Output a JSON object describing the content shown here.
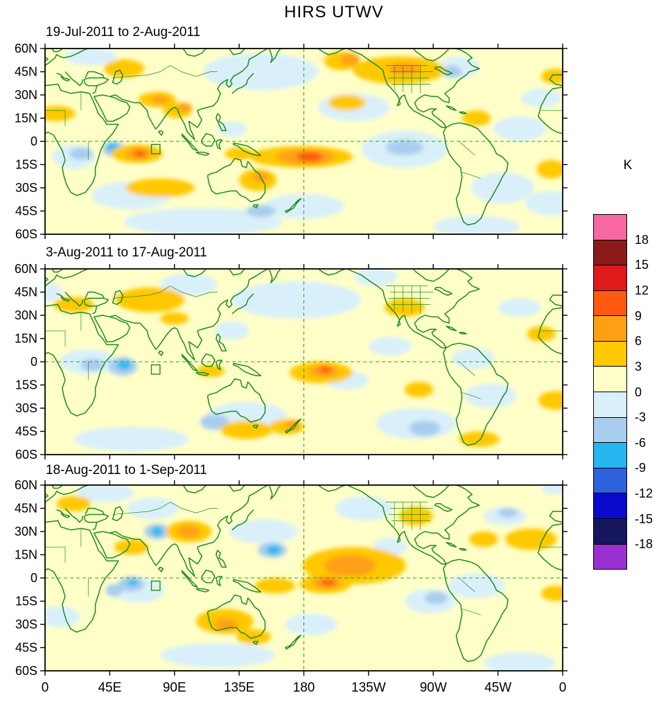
{
  "title": "HIRS UTWV",
  "chart_data": {
    "type": "heatmap",
    "title": "HIRS UTWV",
    "unit": "K",
    "projection": "equirectangular, 0-360E longitude, 60S-60N latitude",
    "lon_range": [
      0,
      360
    ],
    "lat_range": [
      -60,
      60
    ],
    "lon_ticks": [
      "0",
      "45E",
      "90E",
      "135E",
      "180",
      "135W",
      "90W",
      "45W",
      "0"
    ],
    "lat_ticks": [
      "60N",
      "45N",
      "30N",
      "15N",
      "0",
      "15S",
      "30S",
      "45S",
      "60S"
    ],
    "contour_interval": 3,
    "colorbar_levels": [
      18,
      15,
      12,
      9,
      6,
      3,
      0,
      -3,
      -6,
      -9,
      -12,
      -15,
      -18
    ],
    "colorbar_colors": [
      "#F768A1",
      "#8B1A1A",
      "#E01A1A",
      "#FF5A0F",
      "#FFA014",
      "#FFC805",
      "#FFFFC8",
      "#D9F0FA",
      "#A9CDEE",
      "#27B7F0",
      "#2D62DC",
      "#0A0ACC",
      "#16165E",
      "#9A30D0"
    ],
    "level_colors": {
      "base": "#FFFFC8",
      "p3": "#FFC805",
      "p6": "#FFA014",
      "p9": "#FF5A0F",
      "p12": "#E01A1A",
      "m3": "#D9F0FA",
      "m6": "#A9CDEE",
      "m9": "#27B7F0",
      "m12": "#2D62DC"
    },
    "panels": [
      {
        "subtitle": "19-Jul-2011 to 2-Aug-2011",
        "anomalies": [
          [
            150,
            45,
            40,
            12,
            "m3"
          ],
          [
            215,
            22,
            25,
            9,
            "m3"
          ],
          [
            250,
            -5,
            30,
            12,
            "m3"
          ],
          [
            318,
            -30,
            22,
            10,
            "m3"
          ],
          [
            60,
            -35,
            28,
            9,
            "m3"
          ],
          [
            110,
            -52,
            55,
            9,
            "m3"
          ],
          [
            288,
            48,
            14,
            7,
            "m3"
          ],
          [
            20,
            -10,
            15,
            8,
            "m3"
          ],
          [
            180,
            -42,
            28,
            8,
            "m3"
          ],
          [
            330,
            8,
            18,
            8,
            "m3"
          ],
          [
            352,
            -40,
            18,
            8,
            "m3"
          ],
          [
            32,
            55,
            18,
            6,
            "m3"
          ],
          [
            345,
            28,
            14,
            6,
            "m3"
          ],
          [
            300,
            -55,
            30,
            7,
            "m3"
          ],
          [
            130,
            8,
            10,
            5,
            "m3"
          ],
          [
            250,
            -4,
            13,
            5,
            "m6"
          ],
          [
            283,
            45,
            7,
            4,
            "m6"
          ],
          [
            25,
            -8,
            8,
            4,
            "m6"
          ],
          [
            48,
            -5,
            8,
            5,
            "m6"
          ],
          [
            150,
            -45,
            10,
            4,
            "m6"
          ],
          [
            47,
            -4,
            4,
            3,
            "m9"
          ],
          [
            178,
            -10,
            36,
            7,
            "p3"
          ],
          [
            64,
            -8,
            18,
            6,
            "p3"
          ],
          [
            78,
            27,
            13,
            5,
            "p3"
          ],
          [
            92,
            20,
            10,
            5,
            "p3"
          ],
          [
            246,
            46,
            32,
            9,
            "p3"
          ],
          [
            206,
            52,
            12,
            6,
            "p3"
          ],
          [
            148,
            -25,
            13,
            7,
            "p3"
          ],
          [
            80,
            -30,
            24,
            6,
            "p3"
          ],
          [
            352,
            -18,
            10,
            6,
            "p3"
          ],
          [
            8,
            18,
            13,
            5,
            "p3"
          ],
          [
            55,
            47,
            14,
            6,
            "p3"
          ],
          [
            210,
            25,
            13,
            5,
            "p3"
          ],
          [
            135,
            -8,
            10,
            4,
            "p3"
          ],
          [
            355,
            42,
            10,
            5,
            "p3"
          ],
          [
            300,
            15,
            10,
            5,
            "p3"
          ],
          [
            181,
            -10,
            20,
            5,
            "p6"
          ],
          [
            65,
            -8,
            9,
            4,
            "p6"
          ],
          [
            80,
            27,
            6,
            3,
            "p6"
          ],
          [
            250,
            47,
            11,
            4,
            "p6"
          ],
          [
            212,
            53,
            7,
            4,
            "p6"
          ],
          [
            150,
            -23,
            6,
            3,
            "p6"
          ],
          [
            97,
            22,
            5,
            3,
            "p6"
          ],
          [
            184,
            -10,
            9,
            3,
            "p9"
          ],
          [
            66,
            -8,
            4,
            2,
            "p9"
          ]
        ]
      },
      {
        "subtitle": "3-Aug-2011 to 17-Aug-2011",
        "anomalies": [
          [
            30,
            0,
            20,
            8,
            "m3"
          ],
          [
            0,
            45,
            12,
            6,
            "m3"
          ],
          [
            175,
            40,
            45,
            12,
            "m3"
          ],
          [
            140,
            -35,
            28,
            9,
            "m3"
          ],
          [
            258,
            -40,
            28,
            10,
            "m3"
          ],
          [
            310,
            -22,
            18,
            8,
            "m3"
          ],
          [
            230,
            55,
            15,
            6,
            "m3"
          ],
          [
            298,
            2,
            15,
            7,
            "m3"
          ],
          [
            210,
            -12,
            15,
            6,
            "m3"
          ],
          [
            100,
            50,
            20,
            7,
            "m3"
          ],
          [
            330,
            35,
            15,
            6,
            "m3"
          ],
          [
            60,
            -50,
            40,
            8,
            "m3"
          ],
          [
            240,
            10,
            15,
            6,
            "m3"
          ],
          [
            130,
            20,
            12,
            6,
            "m3"
          ],
          [
            54,
            -3,
            10,
            6,
            "m6"
          ],
          [
            118,
            -39,
            10,
            5,
            "m6"
          ],
          [
            264,
            -43,
            11,
            5,
            "m6"
          ],
          [
            33,
            -2,
            8,
            4,
            "m6"
          ],
          [
            55,
            -2,
            5,
            3,
            "m9"
          ],
          [
            192,
            -7,
            22,
            7,
            "p3"
          ],
          [
            73,
            40,
            24,
            8,
            "p3"
          ],
          [
            20,
            37,
            14,
            5,
            "p3"
          ],
          [
            140,
            -44,
            18,
            6,
            "p3"
          ],
          [
            168,
            -42,
            12,
            5,
            "p3"
          ],
          [
            250,
            35,
            14,
            6,
            "p3"
          ],
          [
            302,
            -50,
            14,
            5,
            "p3"
          ],
          [
            355,
            -25,
            12,
            6,
            "p3"
          ],
          [
            115,
            -6,
            10,
            4,
            "p3"
          ],
          [
            345,
            18,
            10,
            5,
            "p3"
          ],
          [
            260,
            -18,
            10,
            5,
            "p3"
          ],
          [
            90,
            28,
            10,
            4,
            "p3"
          ],
          [
            194,
            -6,
            10,
            4,
            "p6"
          ],
          [
            172,
            -41,
            5,
            3,
            "p6"
          ],
          [
            195,
            -5,
            4,
            2,
            "p9"
          ]
        ]
      },
      {
        "subtitle": "18-Aug-2011 to 1-Sep-2011",
        "anomalies": [
          [
            152,
            30,
            24,
            8,
            "m3"
          ],
          [
            300,
            -5,
            20,
            8,
            "m3"
          ],
          [
            268,
            -15,
            18,
            8,
            "m3"
          ],
          [
            222,
            45,
            20,
            8,
            "m3"
          ],
          [
            320,
            40,
            15,
            6,
            "m3"
          ],
          [
            10,
            -25,
            14,
            7,
            "m3"
          ],
          [
            120,
            -50,
            40,
            8,
            "m3"
          ],
          [
            42,
            55,
            20,
            6,
            "m3"
          ],
          [
            330,
            -55,
            25,
            7,
            "m3"
          ],
          [
            75,
            45,
            18,
            7,
            "m3"
          ],
          [
            185,
            -30,
            18,
            7,
            "m3"
          ],
          [
            65,
            -8,
            18,
            8,
            "m3"
          ],
          [
            240,
            20,
            12,
            6,
            "m3"
          ],
          [
            355,
            58,
            10,
            4,
            "m3"
          ],
          [
            78,
            30,
            9,
            5,
            "m6"
          ],
          [
            158,
            18,
            10,
            5,
            "m6"
          ],
          [
            60,
            -4,
            9,
            5,
            "m6"
          ],
          [
            272,
            -13,
            8,
            4,
            "m6"
          ],
          [
            322,
            42,
            7,
            3,
            "m6"
          ],
          [
            48,
            -8,
            6,
            4,
            "m6"
          ],
          [
            78,
            30,
            4,
            3,
            "m9"
          ],
          [
            159,
            18,
            5,
            3,
            "m9"
          ],
          [
            61,
            -3,
            4,
            2,
            "m9"
          ],
          [
            215,
            8,
            36,
            12,
            "p3"
          ],
          [
            195,
            -4,
            18,
            6,
            "p3"
          ],
          [
            100,
            30,
            16,
            7,
            "p3"
          ],
          [
            125,
            -28,
            20,
            8,
            "p3"
          ],
          [
            60,
            20,
            12,
            5,
            "p3"
          ],
          [
            20,
            48,
            12,
            5,
            "p3"
          ],
          [
            338,
            25,
            18,
            7,
            "p3"
          ],
          [
            355,
            -10,
            10,
            5,
            "p3"
          ],
          [
            160,
            -5,
            14,
            5,
            "p3"
          ],
          [
            258,
            40,
            12,
            6,
            "p3"
          ],
          [
            305,
            25,
            10,
            5,
            "p3"
          ],
          [
            145,
            -38,
            12,
            5,
            "p3"
          ],
          [
            212,
            8,
            18,
            7,
            "p6"
          ],
          [
            196,
            -3,
            10,
            4,
            "p6"
          ],
          [
            100,
            30,
            8,
            4,
            "p6"
          ],
          [
            126,
            -30,
            8,
            4,
            "p6"
          ],
          [
            197,
            -3,
            5,
            2,
            "p9"
          ]
        ]
      }
    ]
  }
}
